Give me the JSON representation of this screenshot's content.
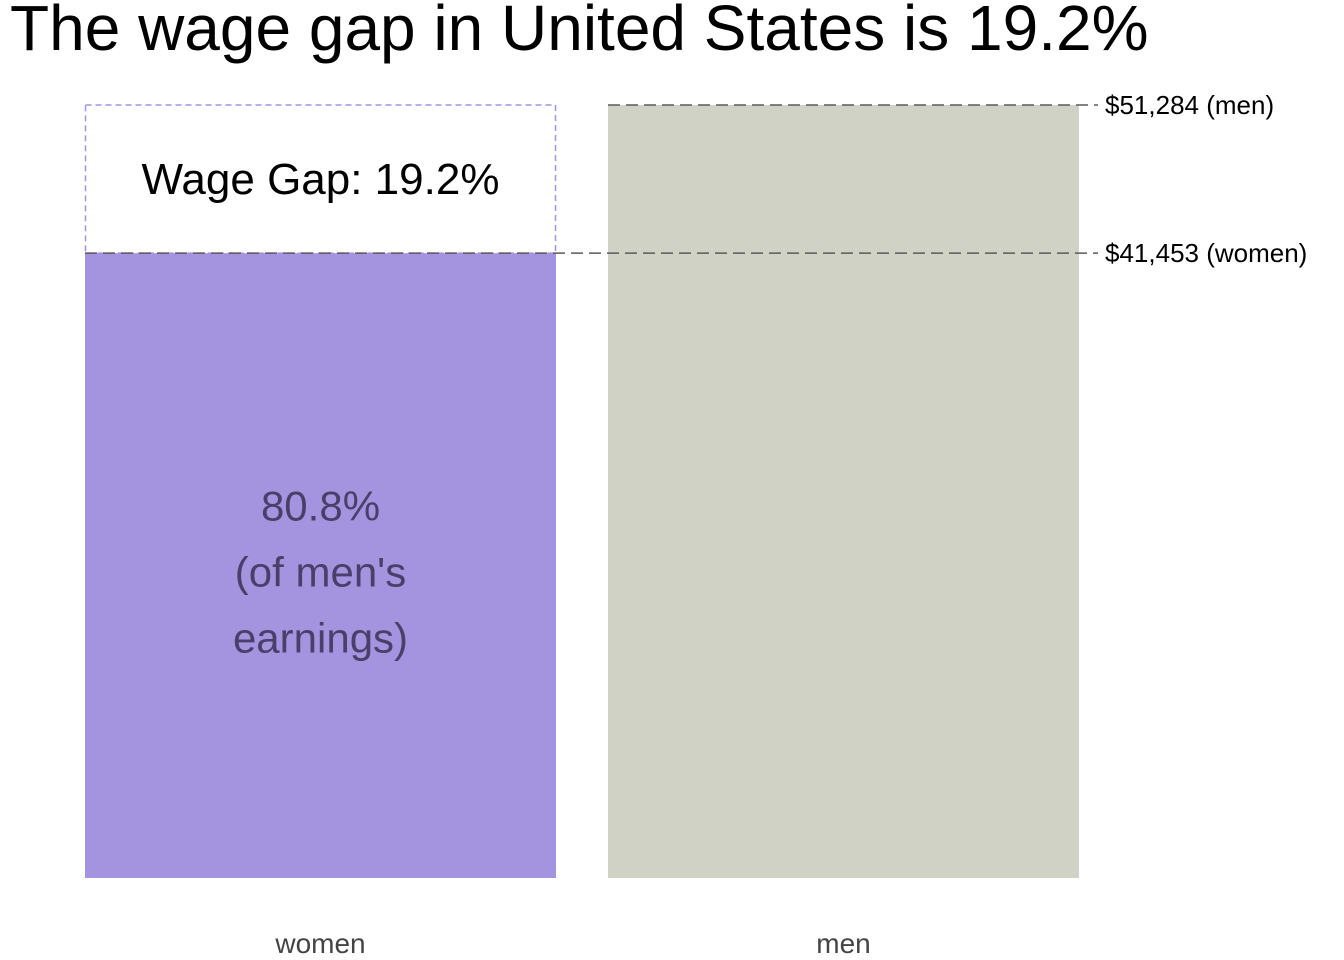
{
  "title": "The wage gap in United States is 19.2%",
  "colors": {
    "women": "#a493df",
    "men": "#cfd2c5",
    "gap_box_stroke": "#a493df",
    "reference_line": "#5a5a5a"
  },
  "chart_data": {
    "type": "bar",
    "title": "The wage gap in United States is 19.2%",
    "categories": [
      "women",
      "men"
    ],
    "values": [
      41453,
      51284
    ],
    "ylim": [
      0,
      51284
    ],
    "grid": false,
    "legend": "none",
    "reference_lines": [
      {
        "value": 51284,
        "label": "$51,284 (men)"
      },
      {
        "value": 41453,
        "label": "$41,453 (women)"
      }
    ],
    "gap_annotation": {
      "from": 41453,
      "to": 51284,
      "label": "Wage Gap: 19.2%"
    },
    "bar_annotation": {
      "category": "women",
      "lines": [
        "80.8%",
        "(of men's",
        "earnings)"
      ]
    }
  }
}
